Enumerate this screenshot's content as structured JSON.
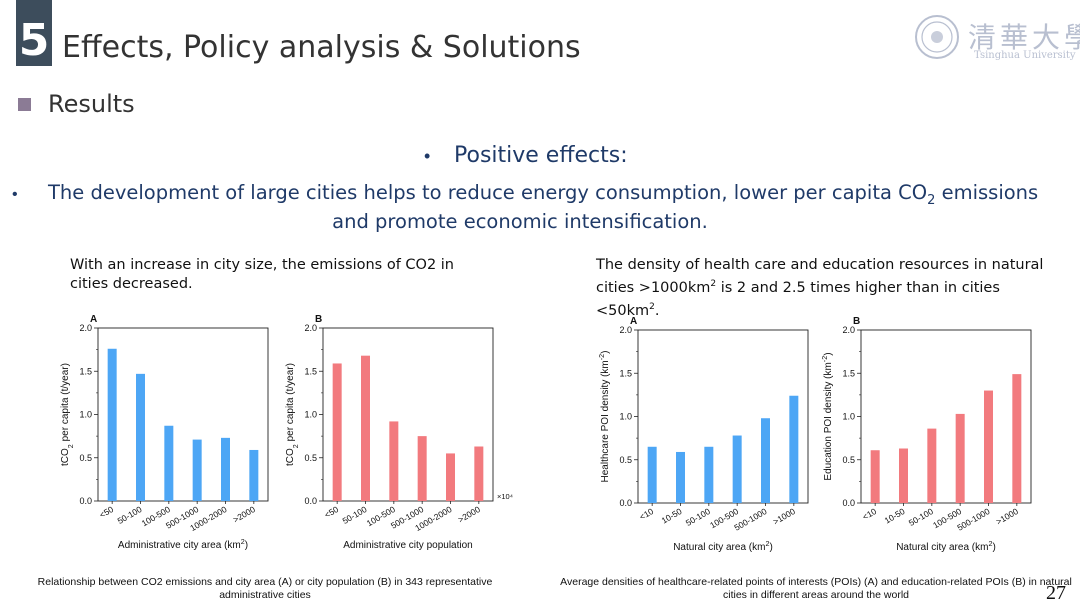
{
  "header": {
    "section_number": "5",
    "title": "Effects, Policy analysis & Solutions",
    "logo_text_cn": "清華大學",
    "logo_text_en": "Tsinghua University"
  },
  "section": {
    "heading": "Results",
    "sub_bullet": "Positive effects:",
    "main_bullet_line1_pre": "The development of large cities helps to reduce energy consumption, lower per capita CO",
    "main_bullet_sub": "2",
    "main_bullet_line1_post": " emissions",
    "main_bullet_line2": "and promote economic intensification."
  },
  "left_panel": {
    "description": "With an increase in city size, the emissions of CO2 in cities decreased.",
    "caption": "Relationship between CO2 emissions and city area (A) or city population (B) in 343 representative administrative cities"
  },
  "right_panel": {
    "description_pre": "The density of health care and education resources in natural cities >1000km",
    "description_sup1": "2",
    "description_mid": " is 2 and 2.5 times higher than in cities <50km",
    "description_sup2": "2",
    "description_post": ".",
    "caption": "Average densities of healthcare-related points of interests (POIs) (A) and education-related POIs (B) in natural cities in different areas around the world"
  },
  "page_number": "27",
  "colors": {
    "blue": "#4da6f5",
    "red": "#f27a7e",
    "dark": "#1f3a68"
  },
  "chart_data": [
    {
      "panel": "A",
      "type": "bar",
      "categories": [
        "<50",
        "50-100",
        "100-500",
        "500-1000",
        "1000-2000",
        ">2000"
      ],
      "values": [
        1.76,
        1.47,
        0.87,
        0.71,
        0.73,
        0.59
      ],
      "ylabel_pre": "tCO",
      "ylabel_sub": "2",
      "ylabel_post": " per capita (t/year)",
      "xlabel_pre": "Administrative city area (km",
      "xlabel_sup": "2",
      "xlabel_post": ")",
      "ylim": [
        0,
        2.0
      ],
      "yticks": [
        "0.0",
        "0.5",
        "1.0",
        "1.5",
        "2.0"
      ],
      "color": "#4da6f5"
    },
    {
      "panel": "B",
      "type": "bar",
      "categories": [
        "<50",
        "50-100",
        "100-500",
        "500-1000",
        "1000-2000",
        ">2000"
      ],
      "values": [
        1.59,
        1.68,
        0.92,
        0.75,
        0.55,
        0.63
      ],
      "ylabel_pre": "tCO",
      "ylabel_sub": "2",
      "ylabel_post": " per capita (t/year)",
      "xlabel_pre": "Administrative city population",
      "xlabel_sup": "",
      "xlabel_post": "",
      "x_multiplier": "×10⁴",
      "ylim": [
        0,
        2.0
      ],
      "yticks": [
        "0.0",
        "0.5",
        "1.0",
        "1.5",
        "2.0"
      ],
      "color": "#f27a7e"
    },
    {
      "panel": "A",
      "type": "bar",
      "categories": [
        "<10",
        "10-50",
        "50-100",
        "100-500",
        "500-1000",
        ">1000"
      ],
      "values": [
        0.65,
        0.59,
        0.65,
        0.78,
        0.98,
        1.24
      ],
      "ylabel_pre": "Healthcare POI density (km",
      "ylabel_sup": "-2",
      "ylabel_post": ")",
      "xlabel_pre": "Natural city area (km",
      "xlabel_sup": "2",
      "xlabel_post": ")",
      "ylim": [
        0,
        2.0
      ],
      "yticks": [
        "0.0",
        "0.5",
        "1.0",
        "1.5",
        "2.0"
      ],
      "color": "#4da6f5"
    },
    {
      "panel": "B",
      "type": "bar",
      "categories": [
        "<10",
        "10-50",
        "50-100",
        "100-500",
        "500-1000",
        ">1000"
      ],
      "values": [
        0.61,
        0.63,
        0.86,
        1.03,
        1.3,
        1.49
      ],
      "ylabel_pre": "Education POI density (km",
      "ylabel_sup": "-2",
      "ylabel_post": ")",
      "xlabel_pre": "Natural city area (km",
      "xlabel_sup": "2",
      "xlabel_post": ")",
      "ylim": [
        0,
        2.0
      ],
      "yticks": [
        "0.0",
        "0.5",
        "1.0",
        "1.5",
        "2.0"
      ],
      "color": "#f27a7e"
    }
  ]
}
